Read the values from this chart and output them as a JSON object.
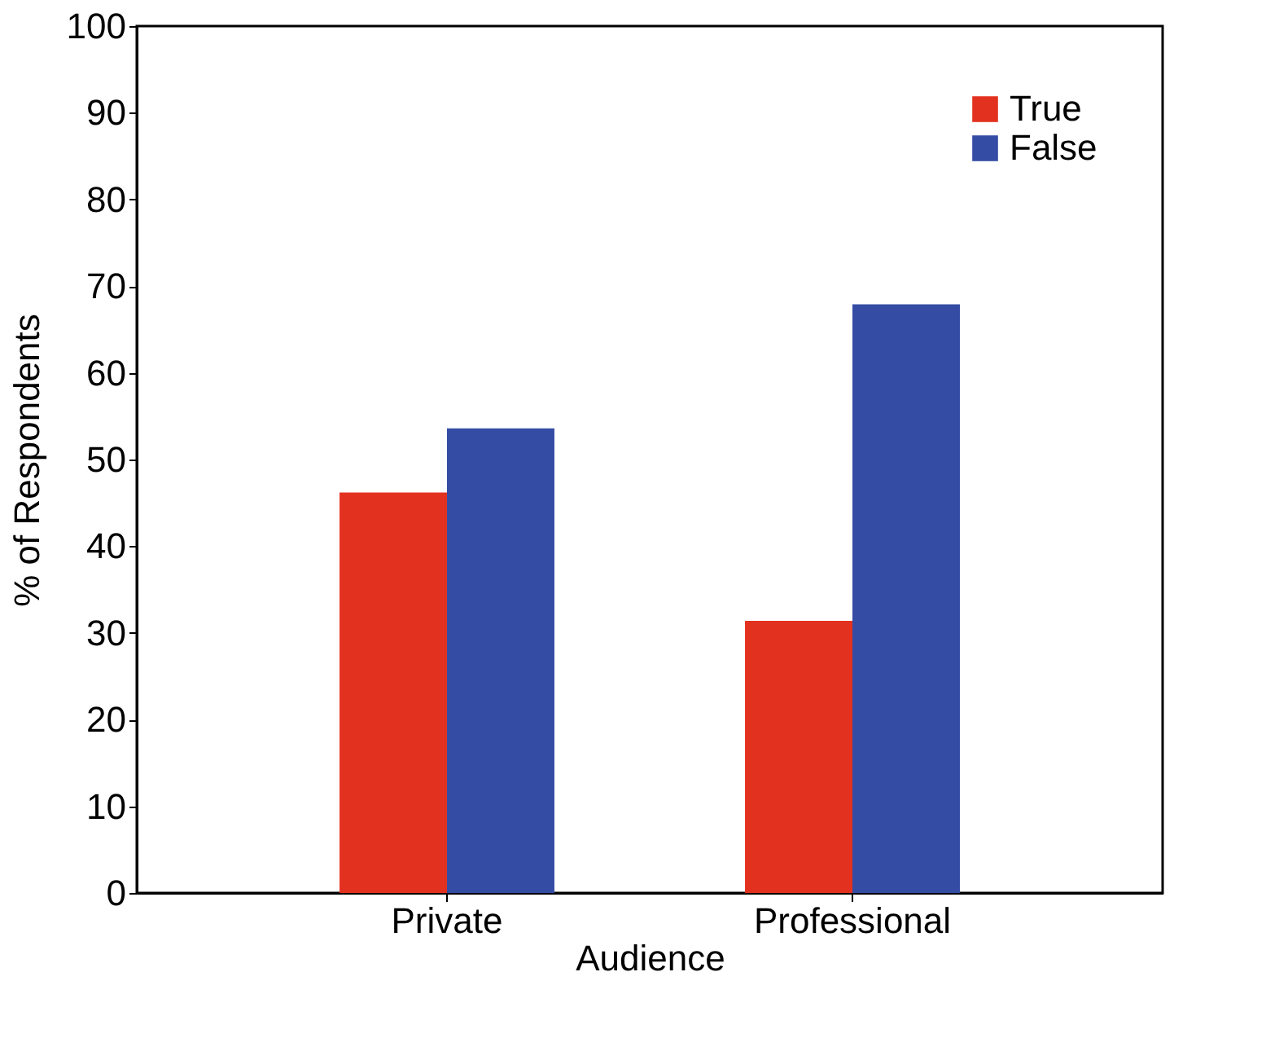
{
  "chart_data": {
    "type": "bar",
    "xlabel": "Audience",
    "ylabel": "% of Respondents",
    "categories": [
      "Private",
      "Professional"
    ],
    "series": [
      {
        "name": "True",
        "color": "#e2321f",
        "values": [
          46.2,
          31.4
        ]
      },
      {
        "name": "False",
        "color": "#344ca4",
        "values": [
          53.6,
          67.9
        ]
      }
    ],
    "ylim": [
      0,
      100
    ],
    "yticks": [
      0,
      10,
      20,
      30,
      40,
      50,
      60,
      70,
      80,
      90,
      100
    ],
    "grid": false,
    "legend": "top right"
  }
}
